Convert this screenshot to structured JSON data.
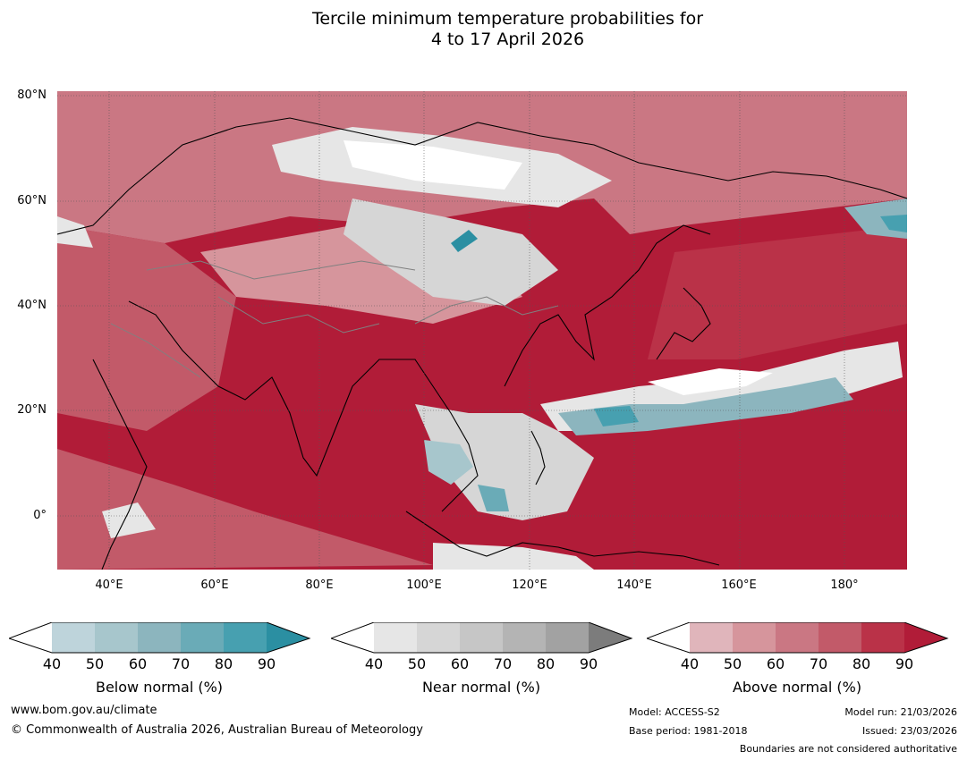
{
  "title": {
    "line1": "Tercile minimum temperature probabilities for",
    "line2": "4 to 17 April 2026"
  },
  "axes": {
    "lat_labels": [
      "80°N",
      "60°N",
      "40°N",
      "20°N",
      "0°"
    ],
    "lon_labels": [
      "40°E",
      "60°E",
      "80°E",
      "100°E",
      "120°E",
      "140°E",
      "160°E",
      "180°"
    ]
  },
  "legends": [
    {
      "name": "Below normal (%)",
      "ticks": [
        "40",
        "50",
        "60",
        "70",
        "80",
        "90"
      ],
      "colors": [
        "#ffffff",
        "#bed4db",
        "#a7c6cc",
        "#8cb5be",
        "#6aabb7",
        "#47a0b0",
        "#2b8fa2"
      ]
    },
    {
      "name": "Near normal (%)",
      "ticks": [
        "40",
        "50",
        "60",
        "70",
        "80",
        "90"
      ],
      "colors": [
        "#ffffff",
        "#e6e6e6",
        "#d6d6d6",
        "#c6c6c6",
        "#b4b4b4",
        "#a2a2a2",
        "#7c7c7c"
      ]
    },
    {
      "name": "Above normal (%)",
      "ticks": [
        "40",
        "50",
        "60",
        "70",
        "80",
        "90"
      ],
      "colors": [
        "#ffffff",
        "#e0b5bb",
        "#d6959c",
        "#ca7783",
        "#c25a69",
        "#ba3248",
        "#b11c38"
      ]
    }
  ],
  "footer": {
    "website": "www.bom.gov.au/climate",
    "copyright": "© Commonwealth of Australia 2026, Australian Bureau of Meteorology",
    "model": "Model: ACCESS-S2",
    "base_period": "Base period: 1981-2018",
    "model_run": "Model run: 21/03/2026",
    "issued": "Issued: 23/03/2026",
    "boundaries": "Boundaries are not considered authoritative"
  }
}
